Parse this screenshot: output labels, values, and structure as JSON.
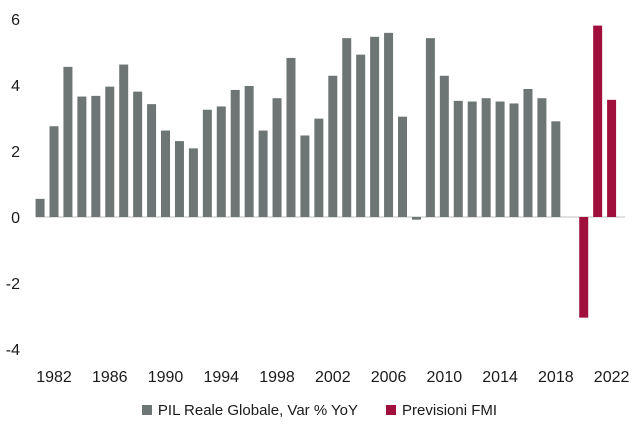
{
  "chart_data": {
    "type": "bar",
    "title": "",
    "xlabel": "",
    "ylabel": "",
    "ylim": [
      -4,
      6
    ],
    "yticks": [
      -4,
      -2,
      0,
      2,
      4,
      6
    ],
    "xticks": [
      1982,
      1986,
      1990,
      1994,
      1998,
      2002,
      2006,
      2010,
      2014,
      2018,
      2022
    ],
    "grid": false,
    "legend_position": "bottom",
    "series": [
      {
        "name": "PIL Reale Globale, Var % YoY",
        "color": "#6d7674",
        "x": [
          1981,
          1982,
          1983,
          1984,
          1985,
          1986,
          1987,
          1988,
          1989,
          1990,
          1991,
          1992,
          1993,
          1994,
          1995,
          1996,
          1997,
          1998,
          1999,
          2000,
          2001,
          2002,
          2003,
          2004,
          2005,
          2006,
          2007,
          2008,
          2009,
          2010,
          2011,
          2012,
          2013,
          2014,
          2015,
          2016,
          2017,
          2018,
          2019
        ],
        "values": [
          0.55,
          2.75,
          4.55,
          3.65,
          3.67,
          3.95,
          4.62,
          3.8,
          3.42,
          2.62,
          2.3,
          2.08,
          3.25,
          3.35,
          3.85,
          3.97,
          2.62,
          3.6,
          4.82,
          2.47,
          2.98,
          4.28,
          5.42,
          4.92,
          5.46,
          5.58,
          3.04,
          -0.08,
          5.42,
          4.28,
          3.52,
          3.5,
          3.6,
          3.5,
          3.44,
          3.88,
          3.6,
          2.9,
          null
        ]
      },
      {
        "name": "Previsioni FMI",
        "color": "#a10f3c",
        "x": [
          2020,
          2021,
          2022
        ],
        "values": [
          -3.05,
          5.8,
          3.55
        ]
      }
    ]
  }
}
